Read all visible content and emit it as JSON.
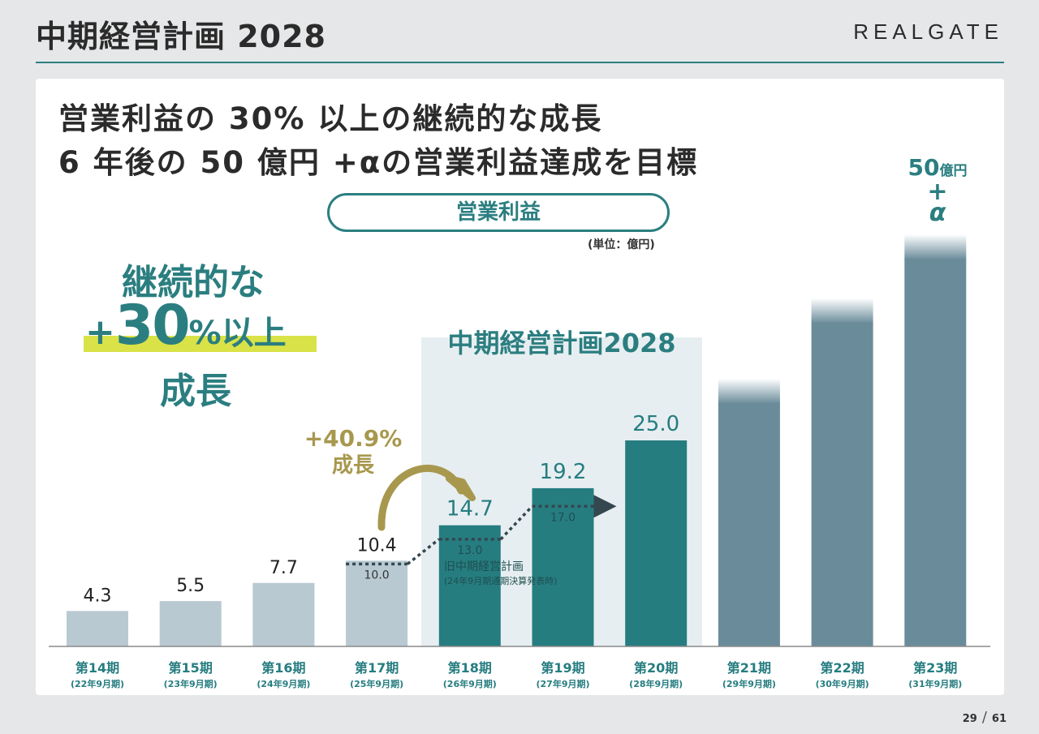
{
  "header": {
    "title": "中期経営計画 2028",
    "brand": "REALGATE"
  },
  "headline": {
    "line1": "営業利益の 30% 以上の継続的な成長",
    "line2": "6 年後の 50 億円 +αの営業利益達成を目標"
  },
  "badge": {
    "line1": "継続的な",
    "plus": "+",
    "number": "30",
    "percent": "%",
    "rest": "以上",
    "line3": "成長",
    "highlight_color": "#d9e247"
  },
  "plan_label": "中期経営計画2028",
  "growth": {
    "pct": "+40.9%",
    "label": "成長"
  },
  "old_plan": {
    "title": "旧中期経営計画",
    "subtitle": "(24年9月期通期決算発表時)"
  },
  "top_label": {
    "value": "50",
    "unit": "億円",
    "plus": "+",
    "alpha": "α"
  },
  "page": {
    "current": "29",
    "separator": "/",
    "total": "61"
  },
  "colors": {
    "teal": "#267d80",
    "past_bar": "#b8c9d2",
    "future_bar": "#6a8c9a",
    "old_plan_line": "#34474f",
    "growth_gold": "#a8984e"
  },
  "chart_data": {
    "type": "bar",
    "title": "営業利益",
    "unit_label": "(単位：億円)",
    "categories": [
      "第14期",
      "第15期",
      "第16期",
      "第17期",
      "第18期",
      "第19期",
      "第20期",
      "第21期",
      "第22期",
      "第23期"
    ],
    "subcategories": [
      "(22年9月期)",
      "(23年9月期)",
      "(24年9月期)",
      "(25年9月期)",
      "(26年9月期)",
      "(27年9月期)",
      "(28年9月期)",
      "(29年9月期)",
      "(30年9月期)",
      "(31年9月期)"
    ],
    "values": [
      4.3,
      5.5,
      7.7,
      10.4,
      14.7,
      19.2,
      25.0,
      32.5,
      42.25,
      50
    ],
    "value_labels": [
      "4.3",
      "5.5",
      "7.7",
      "10.4",
      "14.7",
      "19.2",
      "25.0",
      "",
      "",
      ""
    ],
    "bar_types": [
      "past",
      "past",
      "past",
      "past",
      "plan",
      "plan",
      "plan",
      "future",
      "future",
      "future"
    ],
    "old_plan_series": {
      "name": "旧中期経営計画",
      "points": [
        {
          "category": "第17期",
          "value": 10.0,
          "label": "10.0"
        },
        {
          "category": "第18期",
          "value": 13.0,
          "label": "13.0"
        },
        {
          "category": "第19期",
          "value": 17.0,
          "label": "17.0"
        }
      ]
    },
    "annotation": "+40.9% 成長",
    "ylim": [
      0,
      55
    ]
  }
}
